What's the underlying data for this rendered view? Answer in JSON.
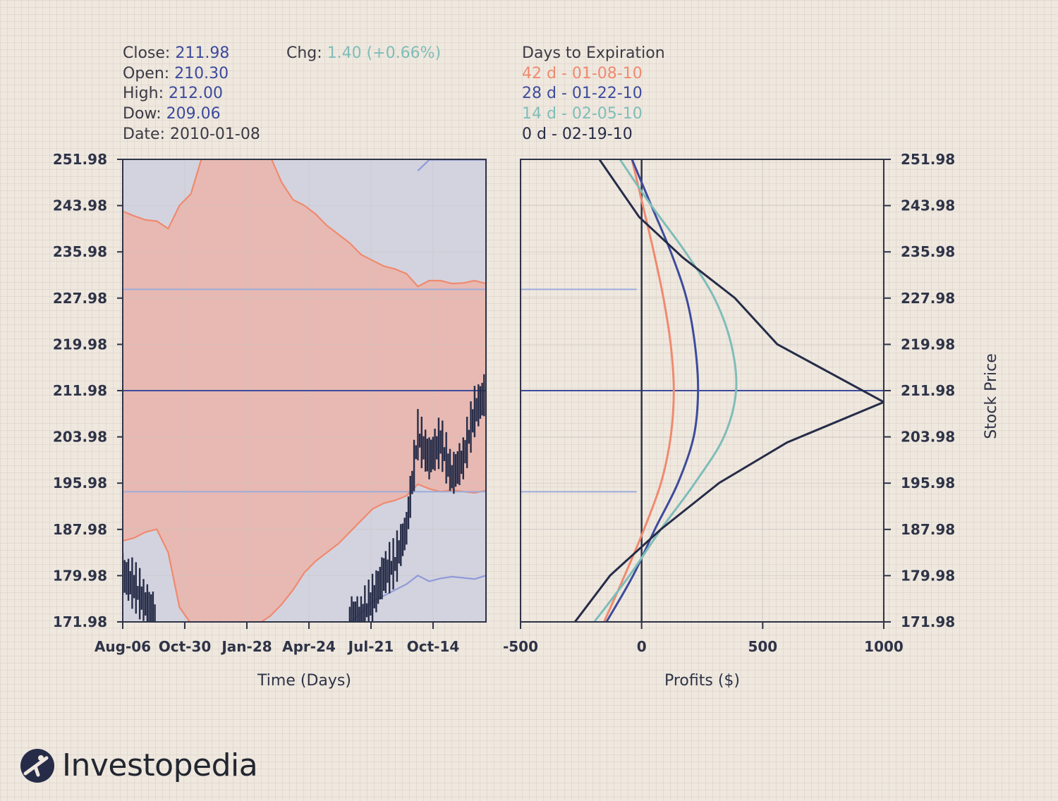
{
  "info": {
    "close_label": "Close:",
    "close_value": "211.98",
    "open_label": "Open:",
    "open_value": "210.30",
    "high_label": "High:",
    "high_value": "212.00",
    "dow_label": "Dow:",
    "dow_value": "209.06",
    "date_label": "Date:",
    "date_value": "2010-01-08",
    "chg_label": "Chg:",
    "chg_value": "1.40 (+0.66%)"
  },
  "legend": {
    "title": "Days to Expiration",
    "items": [
      {
        "label": "42 d - 01-08-10",
        "color": "#ef8a6f"
      },
      {
        "label": "28 d - 01-22-10",
        "color": "#3d4b9c"
      },
      {
        "label": "14 d - 02-05-10",
        "color": "#7fbdb9"
      },
      {
        "label": "0 d - 02-19-10",
        "color": "#262c48"
      }
    ]
  },
  "brand": "Investopedia",
  "colors": {
    "axis": "#2e3347",
    "grid": "#c8c4c2",
    "red_zone": "#e7b9b2",
    "blue_zone": "#d3d3df",
    "band_edge": "#ef8a6f",
    "outer_band": "#8f9bd8",
    "price": "#262c48",
    "level_dark": "#3d4b9c",
    "level_light": "#9cabd9"
  },
  "chart_data": [
    {
      "type": "line",
      "xlabel": "Time (Days)",
      "x_ticks": [
        "Aug-06",
        "Oct-30",
        "Jan-28",
        "Apr-24",
        "Jul-21",
        "Oct-14"
      ],
      "ylim": [
        171.98,
        251.98
      ],
      "y_ticks": [
        "251.98",
        "243.98",
        "235.98",
        "227.98",
        "219.98",
        "211.98",
        "203.98",
        "195.98",
        "187.98",
        "179.98",
        "171.98"
      ],
      "reference_lines": [
        229.5,
        211.98,
        194.5
      ],
      "series": [
        {
          "role": "upper_band",
          "values": [
            243.0,
            242.2,
            241.5,
            241.3,
            240.0,
            244.0,
            246.0,
            252.5,
            252.5,
            252.5,
            252.5,
            252.5,
            252.5,
            252.5,
            248.0,
            245.0,
            244.0,
            242.5,
            240.5,
            239.0,
            237.5,
            235.5,
            234.5,
            233.5,
            233.0,
            232.2,
            230.0,
            231.0,
            231.0,
            230.5,
            230.6,
            231.0,
            230.5
          ]
        },
        {
          "role": "lower_band",
          "values": [
            186.0,
            186.5,
            187.5,
            188.0,
            184.0,
            174.5,
            171.7,
            171.7,
            171.7,
            171.7,
            171.7,
            171.7,
            171.7,
            173.0,
            175.0,
            177.5,
            180.5,
            182.5,
            184.0,
            185.5,
            187.5,
            189.5,
            191.5,
            192.5,
            193.0,
            193.8,
            195.8,
            195.0,
            194.5,
            194.8,
            194.5,
            194.3,
            194.7
          ]
        },
        {
          "role": "outer_upper",
          "values": [
            null,
            null,
            null,
            null,
            null,
            null,
            null,
            null,
            null,
            null,
            null,
            null,
            null,
            null,
            null,
            null,
            null,
            null,
            null,
            null,
            null,
            null,
            null,
            null,
            null,
            null,
            250.0,
            251.9,
            251.9,
            251.9,
            251.9,
            251.9,
            251.9
          ]
        },
        {
          "role": "outer_lower",
          "values": [
            null,
            null,
            null,
            null,
            null,
            null,
            null,
            null,
            null,
            null,
            null,
            null,
            null,
            null,
            null,
            null,
            null,
            null,
            null,
            null,
            171.9,
            173.5,
            175.5,
            176.5,
            177.5,
            178.5,
            180.0,
            179.0,
            179.5,
            179.8,
            179.6,
            179.4,
            180.0
          ]
        },
        {
          "role": "price",
          "values": [
            180.0,
            178.0,
            175.0,
            172.5,
            null,
            null,
            null,
            null,
            null,
            null,
            null,
            null,
            null,
            null,
            null,
            null,
            null,
            null,
            null,
            null,
            null,
            172.5,
            175.5,
            180.0,
            182.0,
            188.0,
            204.0,
            200.0,
            203.0,
            197.0,
            200.0,
            208.0,
            211.5
          ]
        }
      ]
    },
    {
      "type": "line",
      "xlabel": "Profits ($)",
      "ylabel": "Stock Price",
      "x_ticks": [
        "-500",
        "0",
        "500",
        "1000"
      ],
      "xlim": [
        -500,
        1000
      ],
      "ylim": [
        171.98,
        251.98
      ],
      "y_ticks": [
        "251.98",
        "243.98",
        "235.98",
        "227.98",
        "219.98",
        "211.98",
        "203.98",
        "195.98",
        "187.98",
        "179.98",
        "171.98"
      ],
      "reference_lines": [
        229.5,
        211.98,
        194.5
      ],
      "series": [
        {
          "name": "42 d - 01-08-10",
          "x": [
            -40,
            5,
            50,
            90,
            120,
            133,
            120,
            80,
            10,
            -70,
            -155
          ],
          "y": [
            252,
            244,
            236,
            228,
            220,
            212,
            204,
            196,
            188,
            180,
            172
          ]
        },
        {
          "name": "28 d - 01-22-10",
          "x": [
            -40,
            40,
            120,
            185,
            220,
            233,
            215,
            150,
            55,
            -35,
            -145
          ],
          "y": [
            252,
            244,
            236,
            228,
            220,
            212,
            204,
            196,
            188,
            180,
            172
          ]
        },
        {
          "name": "14 d - 02-05-10",
          "x": [
            -90,
            40,
            180,
            300,
            370,
            390,
            340,
            220,
            80,
            -50,
            -195
          ],
          "y": [
            252,
            244,
            236,
            228,
            220,
            212,
            204,
            196,
            188,
            180,
            172
          ]
        },
        {
          "name": "0 d - 02-19-10",
          "x": [
            -175,
            -10,
            170,
            385,
            560,
            1000,
            600,
            320,
            80,
            -130,
            -275
          ],
          "y": [
            252,
            242,
            235,
            228,
            220,
            210,
            203,
            196,
            188,
            180,
            172
          ]
        }
      ]
    }
  ]
}
